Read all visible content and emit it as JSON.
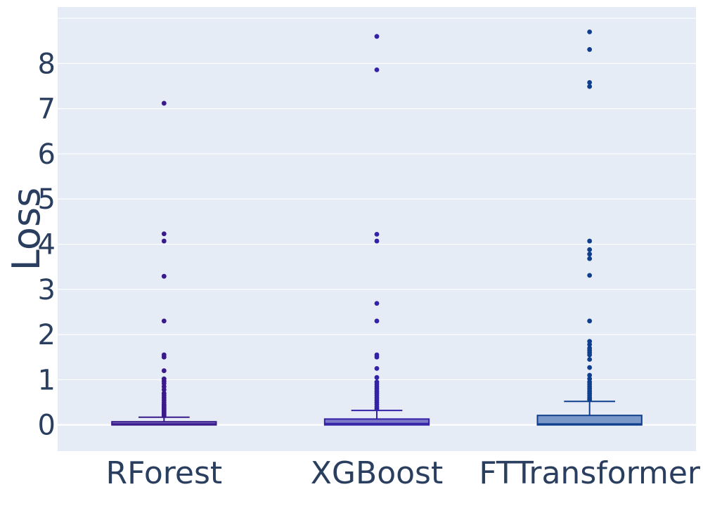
{
  "chart_data": {
    "type": "box",
    "ylabel": "Loss",
    "xlabel": "",
    "ylim": [
      -0.58,
      9.25
    ],
    "yticks": [
      0,
      1,
      2,
      3,
      4,
      5,
      6,
      7,
      8
    ],
    "grid": true,
    "categories": [
      "RForest",
      "XGBoost",
      "FTTransformer"
    ],
    "series": [
      {
        "category": "RForest",
        "color": "#3a1a8a",
        "fill": "#7a6cc4",
        "q1": 0.0,
        "median": 0.02,
        "q3": 0.07,
        "whisker_low": 0.0,
        "whisker_high": 0.17,
        "outliers": [
          7.12,
          4.23,
          4.07,
          3.29,
          2.3,
          1.55,
          1.5,
          1.2,
          1.02,
          0.97,
          0.92,
          0.85,
          0.78,
          0.7,
          0.65,
          0.6,
          0.55,
          0.5,
          0.45,
          0.42,
          0.38,
          0.35,
          0.32,
          0.29,
          0.26,
          0.23,
          0.2
        ]
      },
      {
        "category": "XGBoost",
        "color": "#3322a8",
        "fill": "#7d79c8",
        "q1": 0.0,
        "median": 0.03,
        "q3": 0.13,
        "whisker_low": 0.0,
        "whisker_high": 0.32,
        "outliers": [
          8.6,
          7.86,
          4.22,
          4.07,
          2.69,
          2.3,
          1.55,
          1.5,
          1.25,
          1.05,
          0.95,
          0.9,
          0.85,
          0.8,
          0.75,
          0.7,
          0.65,
          0.6,
          0.55,
          0.5,
          0.45,
          0.4,
          0.36
        ]
      },
      {
        "category": "FTTransformer",
        "color": "#0f3f8c",
        "fill": "#7b99c8",
        "q1": 0.0,
        "median": 0.02,
        "q3": 0.21,
        "whisker_low": 0.0,
        "whisker_high": 0.52,
        "outliers": [
          8.7,
          8.31,
          7.58,
          7.49,
          4.07,
          3.88,
          3.78,
          3.68,
          3.31,
          2.3,
          1.85,
          1.78,
          1.7,
          1.65,
          1.6,
          1.55,
          1.45,
          1.27,
          1.1,
          1.02,
          0.95,
          0.9,
          0.85,
          0.8,
          0.75,
          0.7,
          0.65,
          0.6,
          0.56
        ]
      }
    ]
  },
  "colors": {
    "plot_bg": "#e5ecf6",
    "text": "#2a3f5f"
  }
}
